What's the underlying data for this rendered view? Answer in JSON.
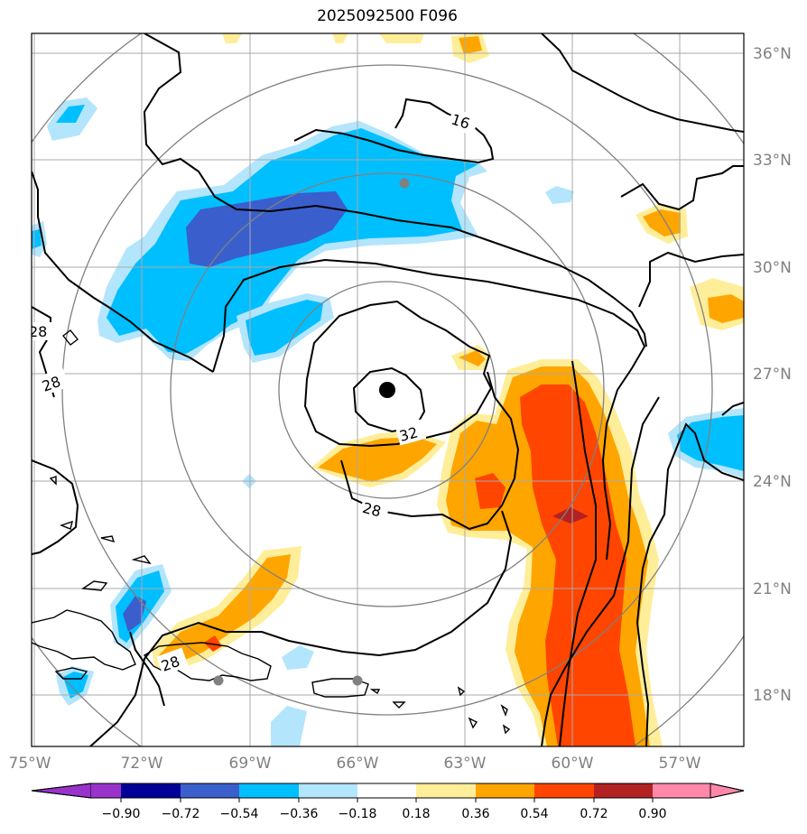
{
  "title": "2025092500 F096",
  "map": {
    "lon_labels": [
      "75°W",
      "72°W",
      "69°W",
      "66°W",
      "63°W",
      "60°W",
      "57°W"
    ],
    "lat_labels": [
      "36°N",
      "33°N",
      "30°N",
      "27°N",
      "24°N",
      "21°N",
      "18°N"
    ],
    "contour_labels": [
      "16",
      "32",
      "28",
      "28",
      "28",
      "28"
    ]
  },
  "colorbar": {
    "ticks": [
      "−0.90",
      "−0.72",
      "−0.54",
      "−0.36",
      "−0.18",
      "0.18",
      "0.36",
      "0.54",
      "0.72",
      "0.90"
    ],
    "colors": [
      "#9933cc",
      "#000099",
      "#3a5fcd",
      "#00bfff",
      "#b3e5fc",
      "#ffffff",
      "#ffee99",
      "#ffa500",
      "#ff4500",
      "#b22222",
      "#ff88aa"
    ]
  },
  "colors": {
    "light_blue": "#b3e5fc",
    "blue": "#00bfff",
    "royal_blue": "#3a5fcd",
    "yellow": "#ffee99",
    "orange": "#ffa500",
    "red_orange": "#ff4500",
    "dark_red": "#b22222"
  }
}
